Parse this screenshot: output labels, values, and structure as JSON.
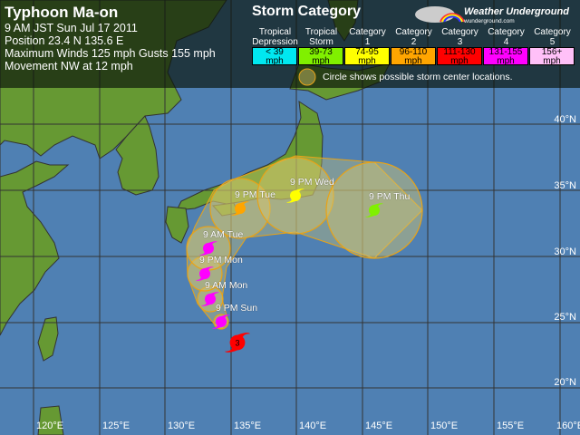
{
  "header": {
    "title": "Typhoon Ma-on",
    "time": "9 AM JST Sun Jul 17 2011",
    "position": "Position 23.4 N 135.6 E",
    "winds": "Maximum Winds 125 mph  Gusts 155 mph",
    "movement": "Movement NW at 12 mph"
  },
  "legend": {
    "title": "Storm Category",
    "categories": [
      {
        "name": "Tropical Depression",
        "range": "< 39 mph",
        "color": "#00e8f0"
      },
      {
        "name": "Tropical Storm",
        "range": "39-73 mph",
        "color": "#80f000"
      },
      {
        "name": "Category 1",
        "range": "74-95 mph",
        "color": "#ffff00"
      },
      {
        "name": "Category 2",
        "range": "96-110 mph",
        "color": "#ffa500"
      },
      {
        "name": "Category 3",
        "range": "111-130 mph",
        "color": "#ff0000"
      },
      {
        "name": "Category 4",
        "range": "131-155 mph",
        "color": "#ff00ff"
      },
      {
        "name": "Category 5",
        "range": "156+ mph",
        "color": "#ffc0f8"
      }
    ],
    "circle_note": "Circle shows possible storm center locations."
  },
  "brand": {
    "name": "Weather Underground",
    "url": "wunderground.com"
  },
  "current": {
    "lat": 23.4,
    "lon": 135.6,
    "category": "3",
    "color": "#ff0000"
  },
  "forecast": [
    {
      "label": "9 PM Sun",
      "color": "#ff00ff"
    },
    {
      "label": "9 AM Mon",
      "color": "#ff00ff"
    },
    {
      "label": "9 PM Mon",
      "color": "#ff00ff"
    },
    {
      "label": "9 AM Tue",
      "color": "#ff00ff"
    },
    {
      "label": "9 PM Tue",
      "color": "#ffa500"
    },
    {
      "label": "9 PM Wed",
      "color": "#ffff00"
    },
    {
      "label": "9 PM Thu",
      "color": "#80f000"
    }
  ],
  "axes": {
    "lat_labels": [
      "40°N",
      "35°N",
      "30°N",
      "25°N",
      "20°N"
    ],
    "lon_labels": [
      "120°E",
      "125°E",
      "130°E",
      "135°E",
      "140°E",
      "145°E",
      "150°E",
      "155°E",
      "160°E"
    ]
  },
  "colors": {
    "ocean": "#4f80b3",
    "land": "#669933",
    "cone": "#e8a317"
  }
}
